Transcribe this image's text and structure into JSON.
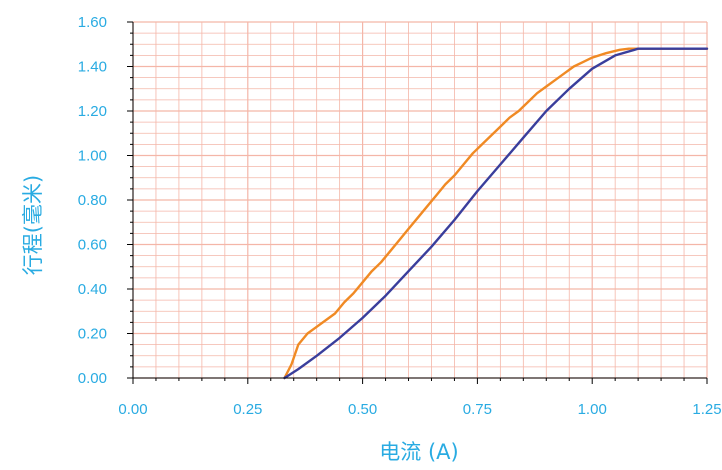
{
  "chart_data": {
    "type": "line",
    "xlabel": "电流 (A)",
    "ylabel": "行程(毫米)",
    "xlim": [
      0,
      1.25
    ],
    "ylim": [
      0,
      1.6
    ],
    "x_ticks": [
      0,
      0.25,
      0.5,
      0.75,
      1.0,
      1.25
    ],
    "y_ticks": [
      0,
      0.2,
      0.4,
      0.6,
      0.8,
      1.0,
      1.2,
      1.4,
      1.6
    ],
    "x_tick_labels": [
      "0.00",
      "0.25",
      "0.50",
      "0.75",
      "1.00",
      "1.25"
    ],
    "y_tick_labels": [
      "0.00",
      "0.20",
      "0.40",
      "0.60",
      "0.80",
      "1.00",
      "1.20",
      "1.40",
      "1.60"
    ],
    "grid": true,
    "colors": {
      "grid": "#F4B6A8",
      "axis": "#000000",
      "text": "#29ABE2"
    },
    "series": [
      {
        "color": "#F08A24",
        "points": [
          [
            0.33,
            0.0
          ],
          [
            0.345,
            0.06
          ],
          [
            0.36,
            0.15
          ],
          [
            0.38,
            0.2
          ],
          [
            0.4,
            0.23
          ],
          [
            0.42,
            0.26
          ],
          [
            0.44,
            0.29
          ],
          [
            0.46,
            0.34
          ],
          [
            0.48,
            0.38
          ],
          [
            0.5,
            0.43
          ],
          [
            0.52,
            0.48
          ],
          [
            0.54,
            0.52
          ],
          [
            0.56,
            0.57
          ],
          [
            0.58,
            0.62
          ],
          [
            0.6,
            0.67
          ],
          [
            0.62,
            0.72
          ],
          [
            0.64,
            0.77
          ],
          [
            0.66,
            0.82
          ],
          [
            0.68,
            0.87
          ],
          [
            0.7,
            0.91
          ],
          [
            0.72,
            0.96
          ],
          [
            0.74,
            1.01
          ],
          [
            0.76,
            1.05
          ],
          [
            0.78,
            1.09
          ],
          [
            0.8,
            1.13
          ],
          [
            0.82,
            1.17
          ],
          [
            0.84,
            1.2
          ],
          [
            0.86,
            1.24
          ],
          [
            0.88,
            1.28
          ],
          [
            0.9,
            1.31
          ],
          [
            0.92,
            1.34
          ],
          [
            0.94,
            1.37
          ],
          [
            0.96,
            1.4
          ],
          [
            0.98,
            1.42
          ],
          [
            1.0,
            1.44
          ],
          [
            1.03,
            1.46
          ],
          [
            1.06,
            1.475
          ],
          [
            1.08,
            1.48
          ],
          [
            1.1,
            1.48
          ],
          [
            1.25,
            1.48
          ]
        ]
      },
      {
        "color": "#3A3E9C",
        "points": [
          [
            0.33,
            0.0
          ],
          [
            0.36,
            0.04
          ],
          [
            0.4,
            0.1
          ],
          [
            0.45,
            0.18
          ],
          [
            0.5,
            0.27
          ],
          [
            0.55,
            0.37
          ],
          [
            0.6,
            0.48
          ],
          [
            0.65,
            0.59
          ],
          [
            0.7,
            0.71
          ],
          [
            0.75,
            0.84
          ],
          [
            0.8,
            0.96
          ],
          [
            0.85,
            1.08
          ],
          [
            0.9,
            1.2
          ],
          [
            0.95,
            1.3
          ],
          [
            1.0,
            1.39
          ],
          [
            1.05,
            1.45
          ],
          [
            1.1,
            1.48
          ],
          [
            1.25,
            1.48
          ]
        ]
      }
    ]
  }
}
